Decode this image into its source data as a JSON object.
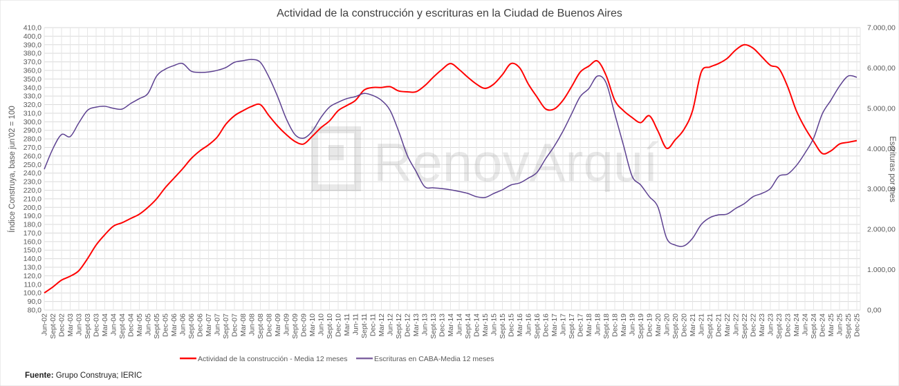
{
  "chart_data": {
    "type": "line",
    "title": "Actividad de la construcción y escrituras en la Ciudad de Buenos Aires",
    "ylabel_left": "Índice Construya, base jun'02 = 100",
    "ylabel_right": "Escrituras por mes",
    "source_label": "Fuente:",
    "source_text": " Grupo Construya; IERIC",
    "watermark": "RenovArquí",
    "grid": true,
    "legend_position": "bottom",
    "ylim_left": [
      80,
      410
    ],
    "ylim_right": [
      0,
      7000
    ],
    "yticks_left": [
      "80,0",
      "90,0",
      "100,0",
      "110,0",
      "120,0",
      "130,0",
      "140,0",
      "150,0",
      "160,0",
      "170,0",
      "180,0",
      "190,0",
      "200,0",
      "210,0",
      "220,0",
      "230,0",
      "240,0",
      "250,0",
      "260,0",
      "270,0",
      "280,0",
      "290,0",
      "300,0",
      "310,0",
      "320,0",
      "330,0",
      "340,0",
      "350,0",
      "360,0",
      "370,0",
      "380,0",
      "390,0",
      "400,0",
      "410,0"
    ],
    "yticks_right": [
      "0,00",
      "1.000,00",
      "2.000,00",
      "3.000,00",
      "4.000,00",
      "5.000,00",
      "6.000,00",
      "7.000,00"
    ],
    "x": [
      "Jun-02",
      "Sept-02",
      "Dec-02",
      "Mar-03",
      "Jun-03",
      "Sept-03",
      "Dec-03",
      "Mar-04",
      "Jun-04",
      "Sept-04",
      "Dec-04",
      "Mar-05",
      "Jun-05",
      "Sept-05",
      "Dec-05",
      "Mar-06",
      "Jun-06",
      "Sept-06",
      "Dec-06",
      "Mar-07",
      "Jun-07",
      "Sept-07",
      "Dec-07",
      "Mar-08",
      "Jun-08",
      "Sept-08",
      "Dec-08",
      "Mar-09",
      "Jun-09",
      "Sept-09",
      "Dec-09",
      "Mar-10",
      "Jun-10",
      "Sept-10",
      "Dec-10",
      "Mar-11",
      "Jun-11",
      "Sept-11",
      "Dec-11",
      "Mar-12",
      "Jun-12",
      "Sept-12",
      "Dec-12",
      "Mar-13",
      "Jun-13",
      "Sept-13",
      "Dec-13",
      "Mar-14",
      "Jun-14",
      "Sept-14",
      "Dec-14",
      "Mar-15",
      "Jun-15",
      "Sept-15",
      "Dec-15",
      "Mar-16",
      "Jun-16",
      "Sept-16",
      "Dec-16",
      "Mar-17",
      "Jun-17",
      "Sept-17",
      "Dec-17",
      "Mar-18",
      "Jun-18",
      "Sept-18",
      "Dec-18",
      "Mar-19",
      "Jun-19",
      "Sept-19",
      "Dec-19",
      "Mar-20",
      "Jun-20",
      "Sept-20",
      "Dec-20",
      "Mar-21",
      "Jun-21",
      "Sept-21",
      "Dec-21",
      "Mar-22",
      "Jun-22",
      "Sept-22",
      "Dec-22",
      "Mar-23",
      "Jun-23",
      "Sept-23",
      "Dec-23",
      "Mar-24",
      "Jun-24",
      "Sept-24",
      "Dec-24",
      "Mar-25",
      "Jun-25",
      "Sept-25",
      "Dec-25"
    ],
    "series": [
      {
        "name": "Actividad de la construcción - Media 12 meses",
        "axis": "left",
        "color": "#ff0000",
        "values": [
          100,
          107,
          115,
          119.5,
          126,
          140,
          156,
          168,
          178,
          182,
          187,
          192,
          200,
          210,
          223,
          234,
          245,
          257,
          266,
          273,
          282,
          297,
          307,
          313,
          318,
          320,
          307,
          295,
          285,
          277,
          274,
          283,
          293,
          301,
          313,
          319,
          325,
          337,
          340,
          340,
          341,
          336,
          335,
          335,
          342,
          352,
          361,
          368,
          361,
          352,
          344,
          339,
          344,
          355,
          368,
          363,
          344,
          329,
          315,
          315,
          325,
          341,
          358,
          365,
          371,
          354,
          325,
          313,
          305,
          299,
          307,
          289,
          269,
          279,
          291,
          313,
          358,
          364,
          368,
          374,
          384,
          390,
          386,
          376,
          366,
          362,
          341,
          313,
          293,
          277,
          263,
          266,
          274,
          276,
          278
        ]
      },
      {
        "name": "Escrituras en CABA-Media 12 meses",
        "axis": "right",
        "color": "#5b3f8f",
        "values": [
          3490,
          4000,
          4350,
          4300,
          4640,
          4950,
          5030,
          5050,
          5000,
          4980,
          5120,
          5240,
          5370,
          5800,
          5970,
          6060,
          6110,
          5920,
          5890,
          5900,
          5940,
          6010,
          6140,
          6180,
          6210,
          6140,
          5770,
          5290,
          4740,
          4350,
          4260,
          4430,
          4770,
          5030,
          5150,
          5240,
          5290,
          5370,
          5320,
          5200,
          4950,
          4430,
          3830,
          3440,
          3060,
          3030,
          3010,
          2980,
          2940,
          2890,
          2810,
          2790,
          2890,
          2980,
          3100,
          3150,
          3270,
          3410,
          3750,
          4060,
          4430,
          4860,
          5290,
          5490,
          5800,
          5630,
          4860,
          4090,
          3320,
          3100,
          2810,
          2550,
          1780,
          1610,
          1590,
          1780,
          2120,
          2290,
          2360,
          2380,
          2520,
          2640,
          2810,
          2890,
          3010,
          3320,
          3370,
          3580,
          3890,
          4260,
          4860,
          5200,
          5550,
          5800,
          5770
        ]
      }
    ]
  }
}
